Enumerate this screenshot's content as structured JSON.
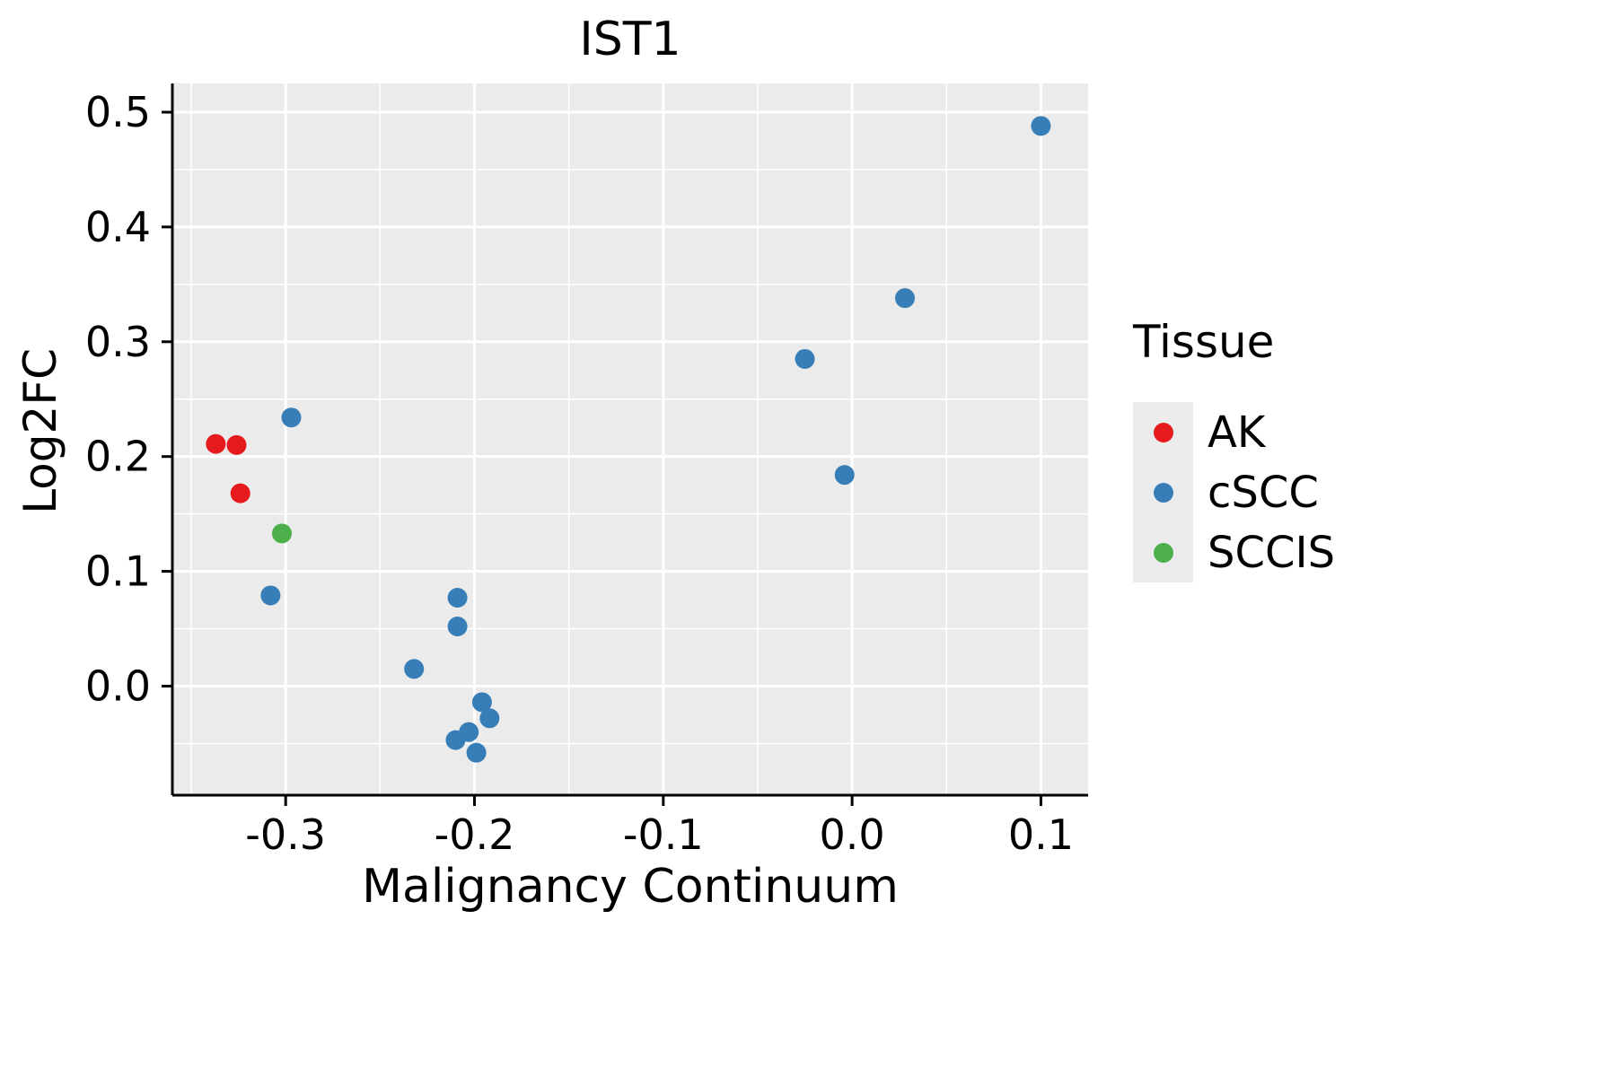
{
  "chart_data": {
    "type": "scatter",
    "title": "IST1",
    "xlabel": "Malignancy Continuum",
    "ylabel": "Log2FC",
    "legend_title": "Tissue",
    "legend_position": "right",
    "panel_color": "#EBEBEB",
    "grid": {
      "show": true,
      "major_color": "#FFFFFF",
      "minor_color": "#FFFFFF"
    },
    "axis_color": "#000000",
    "point_radius": 11,
    "xlim": [
      -0.36,
      0.125
    ],
    "ylim": [
      -0.095,
      0.525
    ],
    "x_ticks": [
      {
        "value": -0.3,
        "label": "-0.3"
      },
      {
        "value": -0.2,
        "label": "-0.2"
      },
      {
        "value": -0.1,
        "label": "-0.1"
      },
      {
        "value": 0.0,
        "label": "0.0"
      },
      {
        "value": 0.1,
        "label": "0.1"
      }
    ],
    "y_ticks": [
      {
        "value": 0.0,
        "label": "0.0"
      },
      {
        "value": 0.1,
        "label": "0.1"
      },
      {
        "value": 0.2,
        "label": "0.2"
      },
      {
        "value": 0.3,
        "label": "0.3"
      },
      {
        "value": 0.4,
        "label": "0.4"
      },
      {
        "value": 0.5,
        "label": "0.5"
      }
    ],
    "x_minor": [
      -0.35,
      -0.25,
      -0.15,
      -0.05,
      0.05
    ],
    "y_minor": [
      -0.05,
      0.05,
      0.15,
      0.25,
      0.35,
      0.45
    ],
    "series": [
      {
        "name": "AK",
        "color": "#E41A1C",
        "points": [
          [
            -0.337,
            0.211
          ],
          [
            -0.326,
            0.21
          ],
          [
            -0.324,
            0.168
          ]
        ]
      },
      {
        "name": "cSCC",
        "color": "#377EB8",
        "points": [
          [
            -0.297,
            0.234
          ],
          [
            -0.308,
            0.079
          ],
          [
            -0.232,
            0.015
          ],
          [
            -0.209,
            0.077
          ],
          [
            -0.209,
            0.052
          ],
          [
            -0.21,
            -0.047
          ],
          [
            -0.203,
            -0.04
          ],
          [
            -0.196,
            -0.014
          ],
          [
            -0.192,
            -0.028
          ],
          [
            -0.199,
            -0.058
          ],
          [
            -0.025,
            0.285
          ],
          [
            -0.004,
            0.184
          ],
          [
            0.028,
            0.338
          ],
          [
            0.1,
            0.488
          ]
        ]
      },
      {
        "name": "SCCIS",
        "color": "#4DAF4A",
        "points": [
          [
            -0.302,
            0.133
          ]
        ]
      }
    ]
  }
}
